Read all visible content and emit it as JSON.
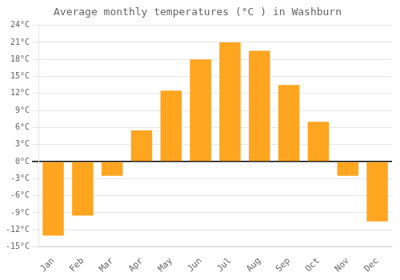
{
  "chart_data": {
    "type": "bar",
    "title": "Average monthly temperatures (°C ) in Washburn",
    "categories": [
      "Jan",
      "Feb",
      "Mar",
      "Apr",
      "May",
      "Jun",
      "Jul",
      "Aug",
      "Sep",
      "Oct",
      "Nov",
      "Dec"
    ],
    "values": [
      -13,
      -9.5,
      -2.5,
      5.5,
      12.5,
      18,
      21,
      19.5,
      13.5,
      7,
      -2.5,
      -10.5
    ],
    "color": "#FFA520",
    "ylim": [
      -15,
      24
    ],
    "yticks": [
      {
        "value": -15,
        "label": "-15°C"
      },
      {
        "value": -12,
        "label": "-12°C"
      },
      {
        "value": -9,
        "label": "-9°C"
      },
      {
        "value": -6,
        "label": "-6°C"
      },
      {
        "value": -3,
        "label": "-3°C"
      },
      {
        "value": 0,
        "label": "0°C"
      },
      {
        "value": 3,
        "label": "3°C"
      },
      {
        "value": 6,
        "label": "6°C"
      },
      {
        "value": 9,
        "label": "9°C"
      },
      {
        "value": 12,
        "label": "12°C"
      },
      {
        "value": 15,
        "label": "15°C"
      },
      {
        "value": 18,
        "label": "18°C"
      },
      {
        "value": 21,
        "label": "21°C"
      },
      {
        "value": 24,
        "label": "24°C"
      }
    ],
    "grid": true
  }
}
